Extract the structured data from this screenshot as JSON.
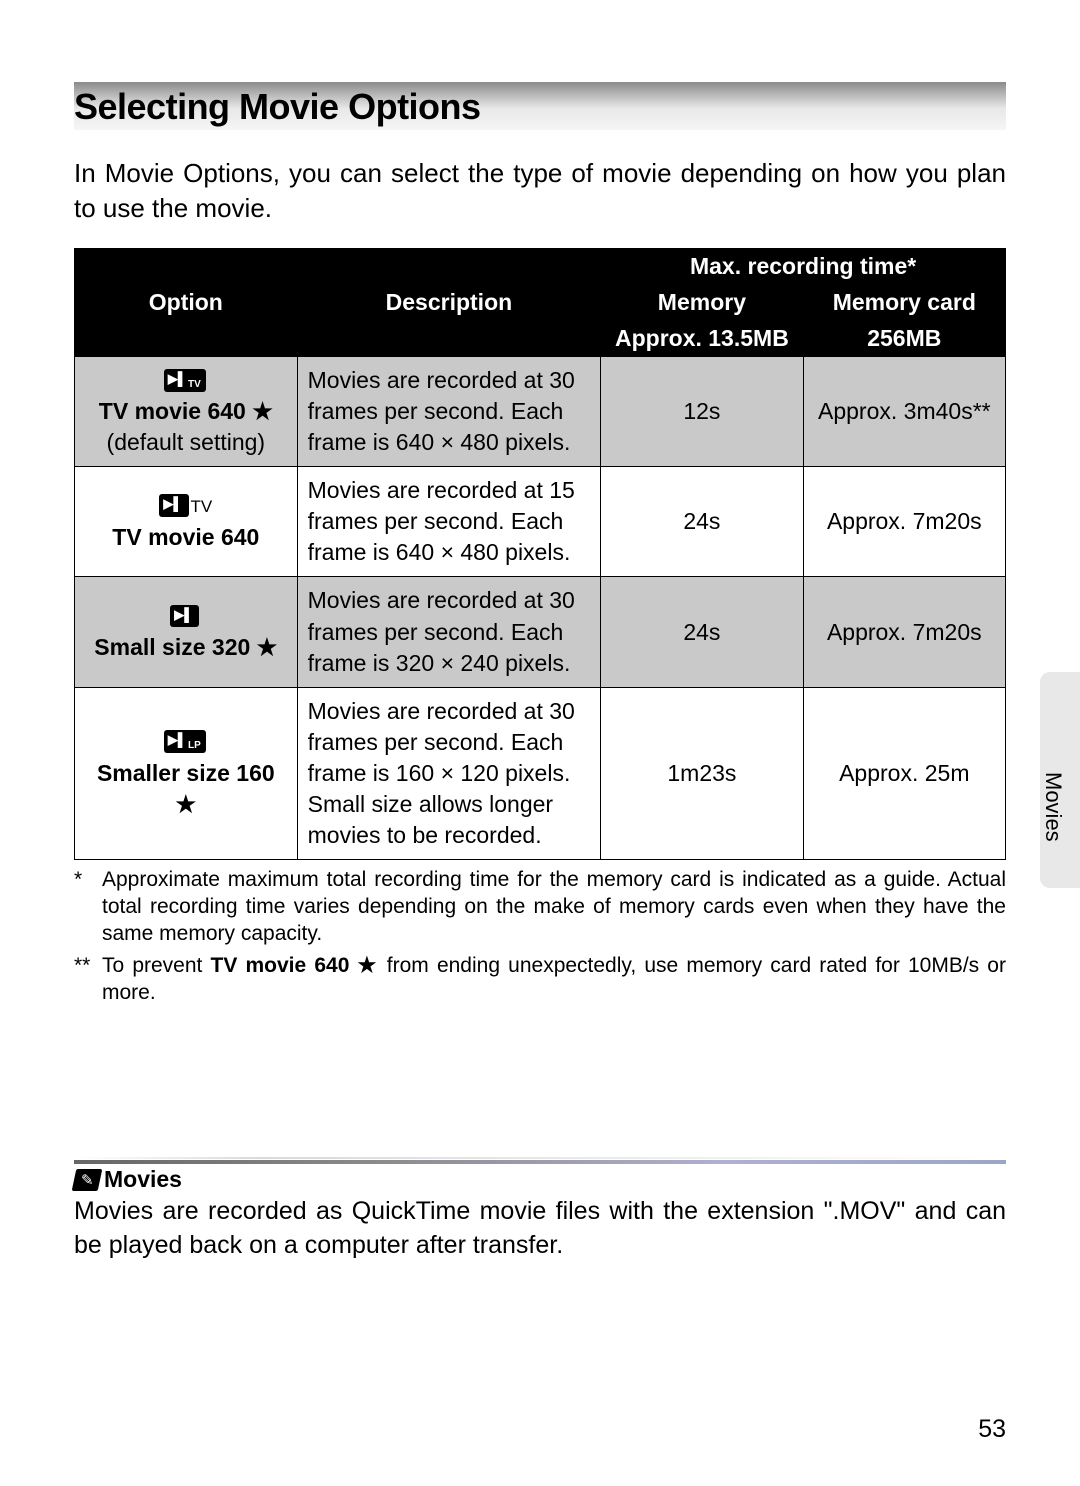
{
  "title": "Selecting Movie Options",
  "intro": "In Movie Options, you can select the type of movie depending on how you plan to use the movie.",
  "table": {
    "headers": {
      "option": "Option",
      "description": "Description",
      "max_recording": "Max. recording time*",
      "memory": "Memory",
      "memory_card": "Memory card",
      "memory_sub": "Approx. 13.5MB",
      "card_sub": "256MB"
    },
    "rows": [
      {
        "icon_sub": "TV",
        "tv_extra": "",
        "title": "TV movie 640 ★",
        "subtitle": "(default setting)",
        "desc": "Movies are recorded at 30 frames per second. Each frame is 640 × 480 pixels.",
        "memory": "12s",
        "card": "Approx. 3m40s**"
      },
      {
        "icon_sub": "",
        "tv_extra": "TV",
        "title": "TV movie 640",
        "subtitle": "",
        "desc": "Movies are recorded at 15 frames per second. Each frame is 640 × 480 pixels.",
        "memory": "24s",
        "card": "Approx. 7m20s"
      },
      {
        "icon_sub": "",
        "tv_extra": "",
        "title": "Small size 320 ★",
        "subtitle": "",
        "desc": "Movies are recorded at 30 frames per second. Each frame is 320 × 240 pixels.",
        "memory": "24s",
        "card": "Approx. 7m20s"
      },
      {
        "icon_sub": "LP",
        "tv_extra": "",
        "title": "Smaller size 160 ★",
        "subtitle": "",
        "desc": "Movies are recorded at 30 frames per second. Each frame is 160 × 120 pixels. Small size allows longer movies to be recorded.",
        "memory": "1m23s",
        "card": "Approx. 25m"
      }
    ]
  },
  "footnotes": {
    "a_marker": "*",
    "a_text": "Approximate maximum total recording time for the memory card is indicated as a guide. Actual total recording time varies depending on the make of memory cards even when they have the same memory capacity.",
    "b_marker": "**",
    "b_pre": "To prevent ",
    "b_bold": "TV movie 640 ★",
    "b_post": " from ending unexpectedly, use memory card rated for 10MB/s or more."
  },
  "side_label": "Movies",
  "note": {
    "title": "Movies",
    "body": "Movies are recorded as QuickTime movie files with the extension \".MOV\" and can be played back on a computer after transfer."
  },
  "page_number": "53"
}
